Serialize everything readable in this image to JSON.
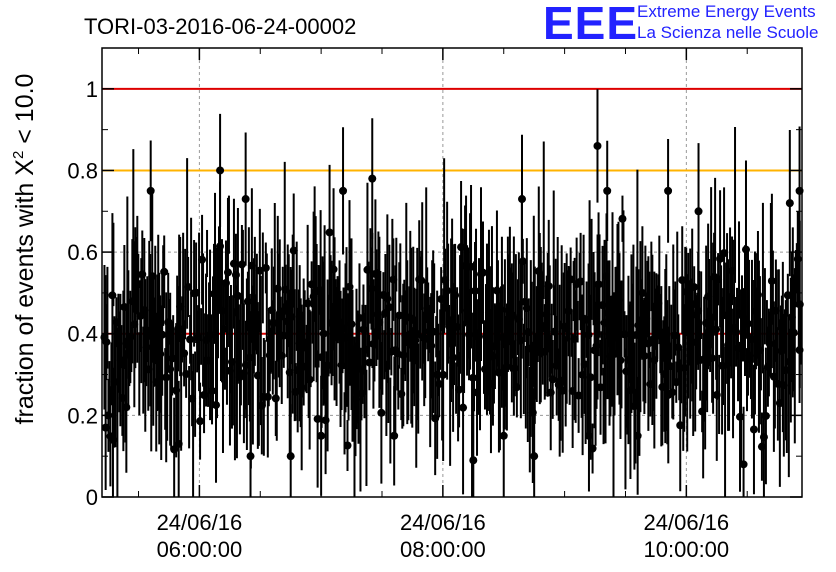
{
  "chart_data": {
    "type": "scatter",
    "title": "TORI-03-2016-06-24-00002",
    "ylabel": "fraction of events with X² < 10.0",
    "ylabel_parts": {
      "prefix": "fraction of events with X",
      "sup": "2",
      "suffix": " < 10.0"
    },
    "xlabel": "",
    "ylim": [
      0,
      1.1
    ],
    "xlim_hours": [
      5.2,
      10.95
    ],
    "yticks": [
      {
        "value": 0,
        "label": "0"
      },
      {
        "value": 0.2,
        "label": "0.2"
      },
      {
        "value": 0.4,
        "label": "0.4"
      },
      {
        "value": 0.6,
        "label": "0.6"
      },
      {
        "value": 0.8,
        "label": "0.8"
      },
      {
        "value": 1,
        "label": "1"
      }
    ],
    "xticks": [
      {
        "hour": 6,
        "date": "24/06/16",
        "time": "06:00:00"
      },
      {
        "hour": 8,
        "date": "24/06/16",
        "time": "08:00:00"
      },
      {
        "hour": 10,
        "date": "24/06/16",
        "time": "10:00:00"
      }
    ],
    "grid": true,
    "reference_lines": [
      {
        "y": 1.0,
        "color": "#dd0000"
      },
      {
        "y": 0.8,
        "color": "#ffb300"
      },
      {
        "y": 0.4,
        "color": "#dd0000"
      }
    ],
    "series": [
      {
        "color": "#000000",
        "n_points": 700,
        "mean": 0.4,
        "spread": 0.12,
        "error_halfwidth_range": [
          0.05,
          0.22
        ],
        "highlights": [
          {
            "hour": 5.23,
            "y": 0.17
          },
          {
            "hour": 5.29,
            "y": 0.14
          },
          {
            "hour": 5.4,
            "y": 0.22
          },
          {
            "hour": 5.6,
            "y": 0.75
          },
          {
            "hour": 5.83,
            "y": 0.13
          },
          {
            "hour": 6.17,
            "y": 0.8
          },
          {
            "hour": 6.38,
            "y": 0.73
          },
          {
            "hour": 6.42,
            "y": 0.1
          },
          {
            "hour": 6.75,
            "y": 0.1
          },
          {
            "hour": 7.0,
            "y": 0.15
          },
          {
            "hour": 7.18,
            "y": 0.75
          },
          {
            "hour": 7.42,
            "y": 0.78
          },
          {
            "hour": 7.6,
            "y": 0.15
          },
          {
            "hour": 8.25,
            "y": 0.09
          },
          {
            "hour": 8.5,
            "y": 0.15
          },
          {
            "hour": 8.65,
            "y": 0.73
          },
          {
            "hour": 8.75,
            "y": 0.1
          },
          {
            "hour": 9.2,
            "y": 0.15
          },
          {
            "hour": 9.27,
            "y": 0.86
          },
          {
            "hour": 9.35,
            "y": 0.75
          },
          {
            "hour": 9.6,
            "y": 0.15
          },
          {
            "hour": 9.85,
            "y": 0.75
          },
          {
            "hour": 10.1,
            "y": 0.7
          },
          {
            "hour": 10.25,
            "y": 0.25
          },
          {
            "hour": 10.47,
            "y": 0.08
          },
          {
            "hour": 10.85,
            "y": 0.72
          },
          {
            "hour": 10.93,
            "y": 0.75
          },
          {
            "hour": 10.93,
            "y": 0.36
          }
        ]
      }
    ]
  },
  "logo": {
    "mark": "EEE",
    "line1": "Extreme Energy Events",
    "line2": "La Scienza nelle Scuole",
    "color": "#2222ff"
  }
}
